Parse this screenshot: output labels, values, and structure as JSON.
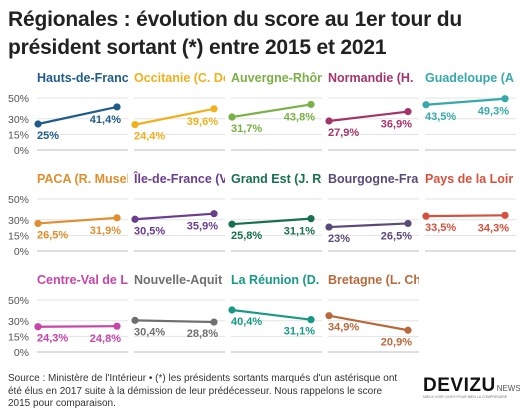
{
  "title": "Régionales : évolution du score au 1er tour du président sortant (*) entre 2015 et 2021",
  "source": "Source : Ministère de l'Intérieur • (*) les présidents sortants marqués d'un astérisque ont été élus en 2017 suite à la démission de leur prédécesseur. Nous rappelons le score 2015 pour comparaison.",
  "logo": {
    "main": "DEVIZU",
    "suffix": "NEWS",
    "tagline": "MIEUX VOIR L'INFO POUR BIEN LA COMPRENDRE"
  },
  "chart_data": {
    "type": "line",
    "x": [
      "2015",
      "2021"
    ],
    "ylim": [
      0,
      50
    ],
    "yticks": [
      "0%",
      "15%",
      "30%",
      "50%"
    ],
    "panels": [
      {
        "name": "Hauts-de-France (X. Bertrand)",
        "title": "Hauts-de-France",
        "color": "#1f5c8b",
        "values": [
          25.0,
          41.4
        ],
        "labels": [
          "25%",
          "41,4%"
        ]
      },
      {
        "name": "Occitanie (C. Delga)",
        "title": "Occitanie (C. De",
        "color": "#f2b01c",
        "values": [
          24.4,
          39.6
        ],
        "labels": [
          "24,4%",
          "39,6%"
        ]
      },
      {
        "name": "Auvergne-Rhône-Alpes",
        "title": "Auvergne-Rhôn",
        "color": "#79b146",
        "values": [
          31.7,
          43.8
        ],
        "labels": [
          "31,7%",
          "43,8%"
        ]
      },
      {
        "name": "Normandie (H. Morin)",
        "title": "Normandie (H.",
        "color": "#a5336a",
        "values": [
          27.9,
          36.9
        ],
        "labels": [
          "27,9%",
          "36,9%"
        ]
      },
      {
        "name": "Guadeloupe (A. Chalus)",
        "title": "Guadeloupe (A",
        "color": "#35a9a9",
        "values": [
          43.5,
          49.3
        ],
        "labels": [
          "43,5%",
          "49,3%"
        ]
      },
      {
        "name": "PACA (R. Muselier)",
        "title": "PACA (R. Museli",
        "color": "#e18e2c",
        "values": [
          26.5,
          31.9
        ],
        "labels": [
          "26,5%",
          "31,9%"
        ]
      },
      {
        "name": "Île-de-France (V. Pécresse)",
        "title": "Île-de-France (V",
        "color": "#6a3d8f",
        "values": [
          30.5,
          35.9
        ],
        "labels": [
          "30,5%",
          "35,9%"
        ]
      },
      {
        "name": "Grand Est (J. Rottner)",
        "title": "Grand Est (J. Ro",
        "color": "#17704e",
        "values": [
          25.8,
          31.1
        ],
        "labels": [
          "25,8%",
          "31,1%"
        ]
      },
      {
        "name": "Bourgogne-Franche-Comté",
        "title": "Bourgogne-Fran",
        "color": "#5a4a7a",
        "values": [
          23.0,
          26.5
        ],
        "labels": [
          "23%",
          "26,5%"
        ]
      },
      {
        "name": "Pays de la Loire",
        "title": "Pays de la Loir",
        "color": "#d8503b",
        "values": [
          33.5,
          34.3
        ],
        "labels": [
          "33,5%",
          "34,3%"
        ]
      },
      {
        "name": "Centre-Val de Loire",
        "title": "Centre-Val de L",
        "color": "#c844a8",
        "values": [
          24.3,
          24.8
        ],
        "labels": [
          "24,3%",
          "24,8%"
        ]
      },
      {
        "name": "Nouvelle-Aquitaine",
        "title": "Nouvelle-Aquit",
        "color": "#6f6f6f",
        "values": [
          30.4,
          28.8
        ],
        "labels": [
          "30,4%",
          "28,8%"
        ]
      },
      {
        "name": "La Réunion (D. Robert)",
        "title": "La Réunion (D.",
        "color": "#169a86",
        "values": [
          40.4,
          31.1
        ],
        "labels": [
          "40,4%",
          "31,1%"
        ]
      },
      {
        "name": "Bretagne (L. Chesnais-Girard)",
        "title": "Bretagne (L. Ch",
        "color": "#b9693a",
        "values": [
          34.9,
          20.9
        ],
        "labels": [
          "34,9%",
          "20,9%"
        ]
      }
    ]
  }
}
